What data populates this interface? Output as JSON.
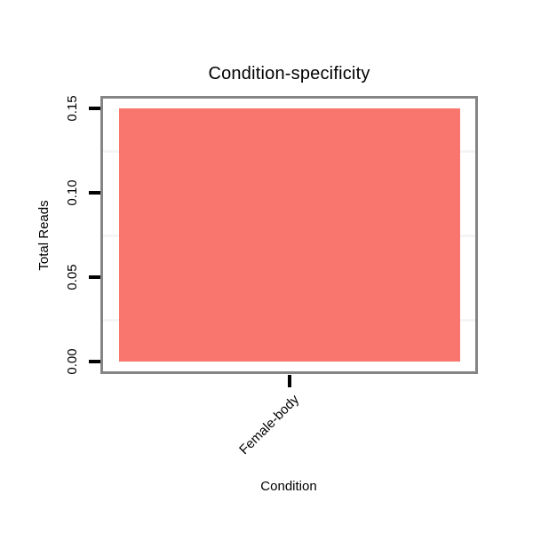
{
  "chart_data": {
    "type": "bar",
    "title": "Condition-specificity",
    "xlabel": "Condition",
    "ylabel": "Total Reads",
    "categories": [
      "Female-body"
    ],
    "values": [
      0.15
    ],
    "ylim": [
      0,
      0.15
    ],
    "ytick_labels": [
      "0.00",
      "0.05",
      "0.10",
      "0.15"
    ],
    "minor_gridlines": [
      0.025,
      0.075,
      0.125
    ],
    "legend": null,
    "grid": "minor-horizontal-only",
    "colors": {
      "bar": "#F8766D",
      "panel_border": "#858585",
      "tick": "#000000",
      "gridline": "#f5f5f5",
      "text": "#000000",
      "background": "#ffffff"
    }
  }
}
